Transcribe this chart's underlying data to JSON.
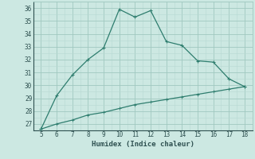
{
  "xlabel": "Humidex (Indice chaleur)",
  "x_upper": [
    5,
    6,
    7,
    8,
    9,
    10,
    11,
    12,
    13,
    14,
    15,
    16,
    17,
    18
  ],
  "y_upper": [
    26.6,
    29.2,
    30.8,
    32.0,
    32.9,
    35.9,
    35.3,
    35.8,
    33.4,
    33.1,
    31.9,
    31.8,
    30.5,
    29.9
  ],
  "x_lower": [
    5,
    6,
    7,
    8,
    9,
    10,
    11,
    12,
    13,
    14,
    15,
    16,
    17,
    18
  ],
  "y_lower": [
    26.6,
    27.0,
    27.3,
    27.7,
    27.9,
    28.2,
    28.5,
    28.7,
    28.9,
    29.1,
    29.3,
    29.5,
    29.7,
    29.9
  ],
  "line_color": "#2e7d6e",
  "bg_color": "#cce8e2",
  "grid_major_color": "#a0c8c0",
  "grid_minor_color": "#b8d8d2",
  "tick_color": "#2e5050",
  "xlim": [
    4.5,
    18.5
  ],
  "ylim": [
    26.5,
    36.5
  ],
  "yticks": [
    27,
    28,
    29,
    30,
    31,
    32,
    33,
    34,
    35,
    36
  ],
  "xticks": [
    5,
    6,
    7,
    8,
    9,
    10,
    11,
    12,
    13,
    14,
    15,
    16,
    17,
    18
  ]
}
